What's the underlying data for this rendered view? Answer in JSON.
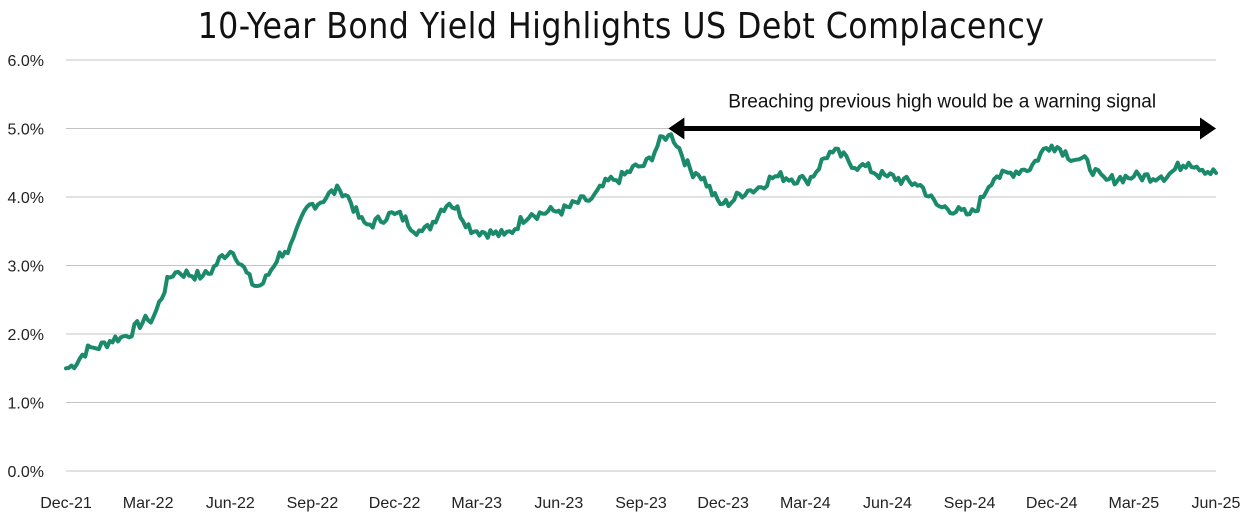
{
  "chart_data": {
    "type": "line",
    "title": "10-Year Bond Yield Highlights US Debt Complacency",
    "xlabel": "",
    "ylabel": "",
    "x_ticks": [
      "Dec-21",
      "Mar-22",
      "Jun-22",
      "Sep-22",
      "Dec-22",
      "Mar-23",
      "Jun-23",
      "Sep-23",
      "Dec-23",
      "Mar-24",
      "Jun-24",
      "Sep-24",
      "Dec-24",
      "Mar-25",
      "Jun-25"
    ],
    "y_ticks": [
      "0.0%",
      "1.0%",
      "2.0%",
      "3.0%",
      "4.0%",
      "5.0%",
      "6.0%"
    ],
    "ylim": [
      0,
      6
    ],
    "grid": "horizontal",
    "legend": "none",
    "line_color": "#1a8a6a",
    "series": [
      {
        "name": "",
        "x": [
          "Dec-21",
          "Jan-22",
          "Feb-22",
          "Mar-22",
          "Apr-22",
          "May-22",
          "Jun-22",
          "Jul-22",
          "Aug-22",
          "Sep-22",
          "Oct-22",
          "Nov-22",
          "Dec-22",
          "Jan-23",
          "Feb-23",
          "Mar-23",
          "Apr-23",
          "May-23",
          "Jun-23",
          "Jul-23",
          "Aug-23",
          "Sep-23",
          "Oct-23",
          "Nov-23",
          "Dec-23",
          "Jan-24",
          "Feb-24",
          "Mar-24",
          "Apr-24",
          "May-24",
          "Jun-24",
          "Jul-24",
          "Aug-24",
          "Sep-24",
          "Oct-24",
          "Nov-24",
          "Dec-24",
          "Jan-25",
          "Feb-25",
          "Mar-25",
          "Apr-25",
          "May-25",
          "Jun-25"
        ],
        "values": [
          1.5,
          1.8,
          1.95,
          2.2,
          2.9,
          2.85,
          3.2,
          2.7,
          3.2,
          3.9,
          4.1,
          3.6,
          3.75,
          3.5,
          3.9,
          3.5,
          3.45,
          3.75,
          3.8,
          3.95,
          4.25,
          4.45,
          4.9,
          4.35,
          3.9,
          4.1,
          4.3,
          4.25,
          4.65,
          4.45,
          4.3,
          4.2,
          3.85,
          3.75,
          4.3,
          4.4,
          4.75,
          4.55,
          4.25,
          4.3,
          4.3,
          4.5,
          4.35
        ]
      }
    ],
    "annotation": {
      "text": "Breaching previous high would be a warning signal",
      "from": "Oct-23",
      "to": "Jun-25",
      "y": 5.0
    }
  }
}
